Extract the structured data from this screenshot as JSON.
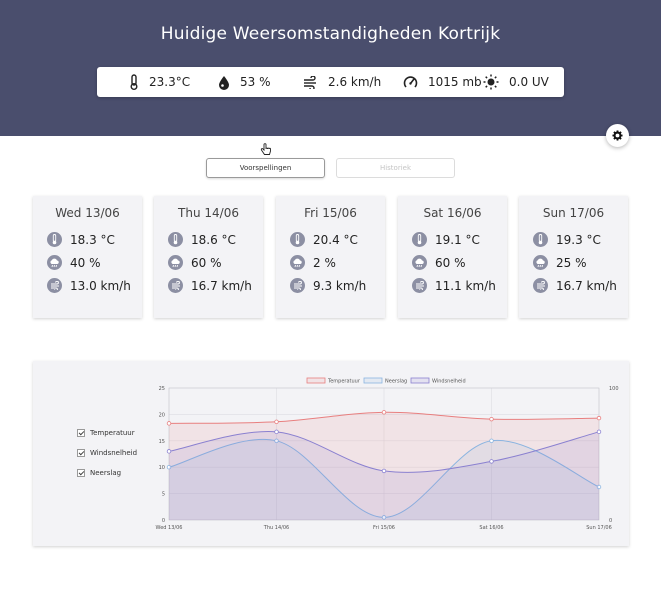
{
  "header": {
    "title": "Huidige Weersomstandigheden Kortrijk",
    "stats": [
      {
        "icon": "thermometer-icon",
        "value": "23.3°C"
      },
      {
        "icon": "humidity-drop-icon",
        "value": "53 %"
      },
      {
        "icon": "wind-icon",
        "value": "2.6 km/h"
      },
      {
        "icon": "pressure-gauge-icon",
        "value": "1015 mb"
      },
      {
        "icon": "sun-icon",
        "value": "0.0 UV"
      }
    ]
  },
  "tabs": {
    "forecast": "Voorspellingen",
    "history": "Historiek"
  },
  "forecast": [
    {
      "day": "Wed 13/06",
      "temp": "18.3 °C",
      "rain": "40 %",
      "wind": "13.0 km/h"
    },
    {
      "day": "Thu 14/06",
      "temp": "18.6 °C",
      "rain": "60 %",
      "wind": "16.7 km/h"
    },
    {
      "day": "Fri 15/06",
      "temp": "20.4 °C",
      "rain": "2 %",
      "wind": "9.3 km/h"
    },
    {
      "day": "Sat 16/06",
      "temp": "19.1 °C",
      "rain": "60 %",
      "wind": "11.1 km/h"
    },
    {
      "day": "Sun 17/06",
      "temp": "19.3 °C",
      "rain": "25 %",
      "wind": "16.7 km/h"
    }
  ],
  "toggles": [
    {
      "label": "Temperatuur",
      "checked": true
    },
    {
      "label": "Windsnelheid",
      "checked": true
    },
    {
      "label": "Neerslag",
      "checked": true
    }
  ],
  "colors": {
    "header": "#4a4e6d",
    "temperature": "#e87f7f",
    "rain": "#8ab4e0",
    "wind": "#8a80d0"
  },
  "chart_data": {
    "type": "line",
    "categories": [
      "Wed 13/06",
      "Thu 14/06",
      "Fri 15/06",
      "Sat 16/06",
      "Sun 17/06"
    ],
    "series": [
      {
        "name": "Temperatuur",
        "axis": "left",
        "values": [
          18.3,
          18.6,
          20.4,
          19.1,
          19.3
        ]
      },
      {
        "name": "Neerslag",
        "axis": "right",
        "values": [
          40,
          60,
          2,
          60,
          25
        ]
      },
      {
        "name": "Windsnelheid",
        "axis": "left",
        "values": [
          13.0,
          16.7,
          9.3,
          11.1,
          16.7
        ]
      }
    ],
    "ylim_left": [
      0,
      25
    ],
    "yticks_left": [
      "0",
      "5",
      "10",
      "15",
      "20",
      "25"
    ],
    "ylim_right": [
      0,
      100
    ],
    "yticks_right": [
      "0",
      "100"
    ],
    "legend_position": "top",
    "grid": true
  }
}
